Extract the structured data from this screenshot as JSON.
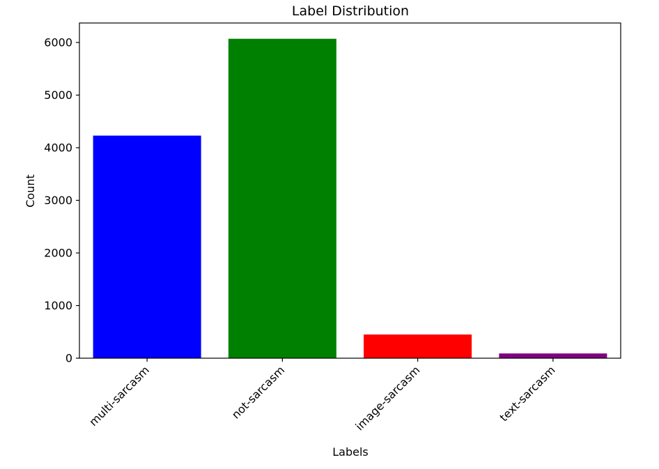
{
  "chart_data": {
    "type": "bar",
    "title": "Label Distribution",
    "xlabel": "Labels",
    "ylabel": "Count",
    "categories": [
      "multi-sarcasm",
      "not-sarcasm",
      "image-sarcasm",
      "text-sarcasm"
    ],
    "values": [
      4230,
      6070,
      450,
      90
    ],
    "colors": [
      "#0000ff",
      "#008000",
      "#ff0000",
      "#800080"
    ],
    "ylim": [
      0,
      6370
    ],
    "yticks": [
      0,
      1000,
      2000,
      3000,
      4000,
      5000,
      6000
    ],
    "ytick_labels": [
      "0",
      "1000",
      "2000",
      "3000",
      "4000",
      "5000",
      "6000"
    ],
    "grid": false,
    "legend": "none"
  }
}
